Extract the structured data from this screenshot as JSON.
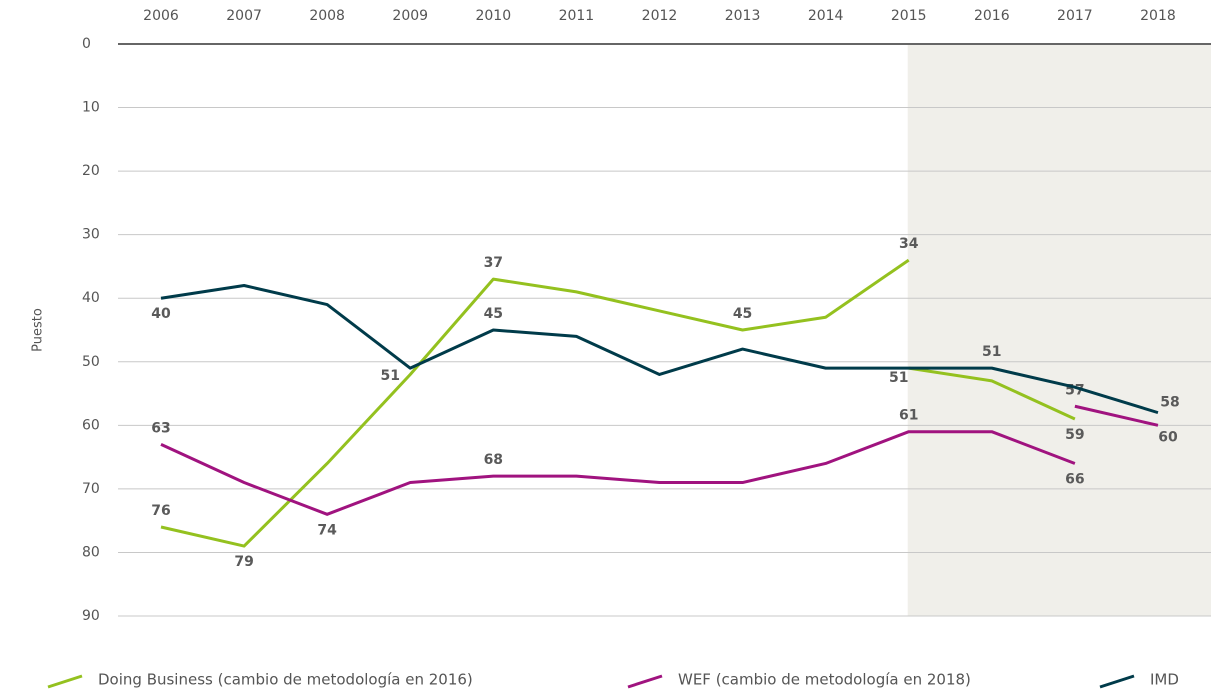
{
  "chart_data": {
    "type": "line",
    "y_label": "Puesto",
    "categories": [
      "2006",
      "2007",
      "2008",
      "2009",
      "2010",
      "2011",
      "2012",
      "2013",
      "2014",
      "2015",
      "2016",
      "2017",
      "2018"
    ],
    "ylim": [
      90,
      0
    ],
    "yticks": [
      0,
      10,
      20,
      30,
      40,
      50,
      60,
      70,
      80,
      90
    ],
    "grid": true,
    "shaded_from": "2015",
    "legend": "bottom",
    "series": [
      {
        "name": "Doing Business (cambio de metodología en 2016)",
        "color": "#94c11f",
        "values": [
          76,
          79,
          66,
          52,
          37,
          39,
          42,
          45,
          43,
          34,
          null,
          null,
          null
        ],
        "value_labels": [
          "76",
          "79",
          null,
          null,
          "37",
          null,
          null,
          "45",
          null,
          "34",
          null,
          null,
          null
        ],
        "values_new": [
          null,
          null,
          null,
          null,
          null,
          null,
          null,
          null,
          null,
          51,
          53,
          59,
          null
        ],
        "value_labels_new": [
          null,
          null,
          null,
          null,
          null,
          null,
          null,
          null,
          null,
          "51",
          null,
          "59",
          null
        ]
      },
      {
        "name": "WEF (cambio de metodología en 2018)",
        "color": "#a0137f",
        "values": [
          63,
          69,
          74,
          69,
          68,
          68,
          69,
          69,
          66,
          61,
          61,
          66,
          null
        ],
        "value_labels": [
          "63",
          null,
          "74",
          null,
          "68",
          null,
          null,
          null,
          null,
          "61",
          null,
          "66",
          null
        ],
        "values_new": [
          null,
          null,
          null,
          null,
          null,
          null,
          null,
          null,
          null,
          null,
          null,
          57,
          60
        ],
        "value_labels_new": [
          null,
          null,
          null,
          null,
          null,
          null,
          null,
          null,
          null,
          null,
          null,
          "57",
          "60"
        ]
      },
      {
        "name": "IMD",
        "color": "#003b4a",
        "values": [
          40,
          38,
          41,
          51,
          45,
          46,
          52,
          48,
          51,
          51,
          51,
          54,
          58
        ],
        "value_labels": [
          "40",
          null,
          null,
          "51",
          "45",
          null,
          null,
          null,
          null,
          null,
          "51",
          null,
          "58"
        ]
      }
    ]
  }
}
